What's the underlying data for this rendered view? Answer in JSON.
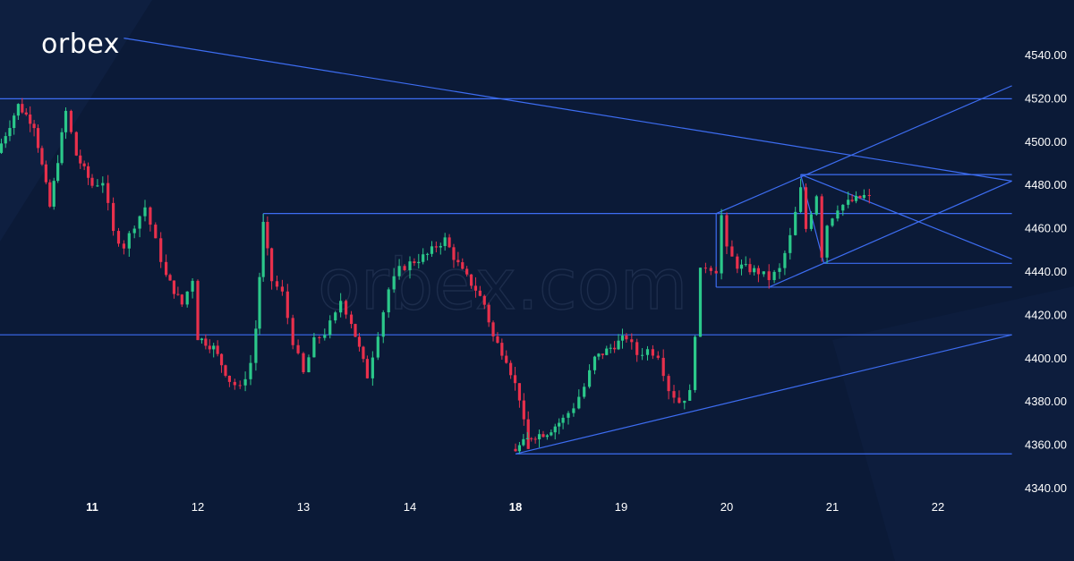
{
  "brand": {
    "logo_text": "orbex",
    "watermark": "orbex.com"
  },
  "colors": {
    "background": "#0b1a37",
    "up": "#2bc88a",
    "down": "#e8304c",
    "line": "#3d6df2",
    "text": "#ffffff"
  },
  "chart_data": {
    "type": "candlestick",
    "y_ticks": [
      "4540.00",
      "4520.00",
      "4500.00",
      "4480.00",
      "4460.00",
      "4440.00",
      "4420.00",
      "4400.00",
      "4380.00",
      "4360.00",
      "4340.00"
    ],
    "x_ticks": [
      {
        "label": "11",
        "bold": true
      },
      {
        "label": "12",
        "bold": false
      },
      {
        "label": "13",
        "bold": false
      },
      {
        "label": "14",
        "bold": false
      },
      {
        "label": "18",
        "bold": true
      },
      {
        "label": "19",
        "bold": false
      },
      {
        "label": "20",
        "bold": false
      },
      {
        "label": "21",
        "bold": false
      },
      {
        "label": "22",
        "bold": false
      }
    ],
    "ylim": [
      4335,
      4555
    ],
    "xlim": [
      10.05,
      22.45
    ],
    "candles_path": [
      [
        10.1,
        4495
      ],
      [
        10.3,
        4517
      ],
      [
        10.45,
        4508
      ],
      [
        10.6,
        4470
      ],
      [
        10.75,
        4514
      ],
      [
        10.85,
        4494
      ],
      [
        11.0,
        4480
      ],
      [
        11.1,
        4482
      ],
      [
        11.2,
        4458
      ],
      [
        11.3,
        4452
      ],
      [
        11.4,
        4462
      ],
      [
        11.5,
        4470
      ],
      [
        11.6,
        4454
      ],
      [
        11.7,
        4438
      ],
      [
        11.85,
        4425
      ],
      [
        11.95,
        4437
      ],
      [
        12.0,
        4410
      ],
      [
        12.15,
        4405
      ],
      [
        12.3,
        4390
      ],
      [
        12.4,
        4386
      ],
      [
        12.5,
        4398
      ],
      [
        12.55,
        4414
      ],
      [
        12.62,
        4462
      ],
      [
        12.7,
        4436
      ],
      [
        12.8,
        4430
      ],
      [
        12.9,
        4408
      ],
      [
        13.0,
        4393
      ],
      [
        13.1,
        4408
      ],
      [
        13.2,
        4412
      ],
      [
        13.3,
        4420
      ],
      [
        13.35,
        4427
      ],
      [
        13.45,
        4417
      ],
      [
        13.6,
        4392
      ],
      [
        13.7,
        4412
      ],
      [
        13.8,
        4432
      ],
      [
        13.9,
        4441
      ],
      [
        14.0,
        4444
      ],
      [
        14.1,
        4446
      ],
      [
        14.2,
        4448
      ],
      [
        14.3,
        4452
      ],
      [
        14.4,
        4455
      ],
      [
        14.5,
        4447
      ],
      [
        14.6,
        4440
      ],
      [
        14.75,
        4432
      ],
      [
        14.85,
        4425
      ],
      [
        14.95,
        4410
      ],
      [
        15.1,
        4400
      ],
      [
        15.25,
        4382
      ],
      [
        15.35,
        4358
      ],
      [
        18.0,
        4358
      ],
      [
        18.15,
        4364
      ],
      [
        18.3,
        4366
      ],
      [
        18.45,
        4372
      ],
      [
        18.55,
        4378
      ],
      [
        18.65,
        4387
      ],
      [
        18.75,
        4400
      ],
      [
        18.9,
        4405
      ],
      [
        19.05,
        4410
      ],
      [
        19.15,
        4402
      ],
      [
        19.25,
        4404
      ],
      [
        19.35,
        4402
      ],
      [
        19.45,
        4386
      ],
      [
        19.55,
        4380
      ],
      [
        19.65,
        4384
      ],
      [
        19.7,
        4412
      ],
      [
        19.75,
        4440
      ],
      [
        19.8,
        4443
      ],
      [
        19.9,
        4441
      ],
      [
        19.95,
        4466
      ],
      [
        20.0,
        4450
      ],
      [
        20.1,
        4443
      ],
      [
        20.3,
        4440
      ],
      [
        20.4,
        4437
      ],
      [
        20.5,
        4441
      ],
      [
        20.6,
        4456
      ],
      [
        20.7,
        4478
      ],
      [
        20.75,
        4460
      ],
      [
        20.85,
        4476
      ],
      [
        20.9,
        4448
      ],
      [
        20.95,
        4462
      ],
      [
        21.05,
        4470
      ],
      [
        21.15,
        4472
      ],
      [
        21.3,
        4475
      ],
      [
        21.35,
        4474
      ]
    ],
    "lines": [
      {
        "name": "descending-trendline",
        "x1": 11.3,
        "y1": 4548,
        "x2": 22.7,
        "y2": 4482
      },
      {
        "name": "top-horizontal",
        "x1": 10.1,
        "y1": 4520,
        "x2": 22.7,
        "y2": 4520
      },
      {
        "name": "mid-horizontal-4467",
        "x1": 12.62,
        "y1": 4467,
        "x2": 22.7,
        "y2": 4467
      },
      {
        "name": "horizontal-4411",
        "x1": 10.05,
        "y1": 4411,
        "x2": 22.7,
        "y2": 4411
      },
      {
        "name": "bottom-horizontal-4356",
        "x1": 18.0,
        "y1": 4356,
        "x2": 22.7,
        "y2": 4356
      },
      {
        "name": "rising-trendline",
        "x1": 18.0,
        "y1": 4356,
        "x2": 22.7,
        "y2": 4411
      },
      {
        "name": "channel-upper",
        "x1": 19.9,
        "y1": 4467,
        "x2": 22.7,
        "y2": 4526
      },
      {
        "name": "channel-lower",
        "x1": 20.4,
        "y1": 4433,
        "x2": 22.7,
        "y2": 4482
      },
      {
        "name": "horizontal-4433",
        "x1": 19.9,
        "y1": 4433,
        "x2": 22.7,
        "y2": 4433
      },
      {
        "name": "pennant-top",
        "x1": 20.7,
        "y1": 4485,
        "x2": 22.7,
        "y2": 4485
      },
      {
        "name": "pennant-falling",
        "x1": 20.7,
        "y1": 4485,
        "x2": 22.7,
        "y2": 4446
      },
      {
        "name": "pennant-bottom",
        "x1": 20.92,
        "y1": 4444,
        "x2": 22.7,
        "y2": 4444
      },
      {
        "name": "pennant-left-edge",
        "x1": 20.7,
        "y1": 4485,
        "x2": 20.92,
        "y2": 4444
      },
      {
        "name": "left-edge-4467",
        "x1": 19.9,
        "y1": 4467,
        "x2": 19.9,
        "y2": 4433
      },
      {
        "name": "left-edge-12",
        "x1": 12.62,
        "y1": 4467,
        "x2": 12.62,
        "y2": 4462
      }
    ]
  }
}
